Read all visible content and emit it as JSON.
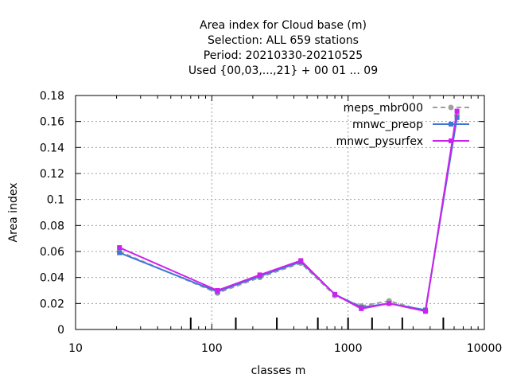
{
  "chart_data": {
    "type": "line",
    "title_lines": [
      "Area index  for Cloud base (m)",
      "Selection: ALL    659 stations",
      "Period: 20210330-20210525",
      "Used {00,03,...,21} + 00 01 ... 09"
    ],
    "xlabel": "classes m",
    "ylabel": "Area index",
    "xscale": "log",
    "xlim": [
      10,
      10000
    ],
    "ylim": [
      0,
      0.18
    ],
    "x_ticks": [
      10,
      100,
      1000,
      10000
    ],
    "x_tick_labels": [
      "10",
      "100",
      "1000",
      "10000"
    ],
    "y_ticks": [
      0,
      0.02,
      0.04,
      0.06,
      0.08,
      0.1,
      0.12,
      0.14,
      0.16,
      0.18
    ],
    "y_tick_labels": [
      "0",
      "0.02",
      "0.04",
      "0.06",
      "0.08",
      "0.1",
      "0.12",
      "0.14",
      "0.16",
      "0.18"
    ],
    "grid": true,
    "legend_position": "top-right",
    "class_boundaries": [
      70,
      150,
      300,
      600,
      1000,
      1500,
      2500,
      5000
    ],
    "x": [
      21,
      110,
      225,
      450,
      800,
      1250,
      2000,
      3700,
      6300
    ],
    "series": [
      {
        "name": "meps_mbr000",
        "color": "#a0a0a0",
        "dash": "dashed",
        "values": [
          0.06,
          0.028,
          0.04,
          0.051,
          0.026,
          0.018,
          0.022,
          0.014,
          0.165
        ]
      },
      {
        "name": "mnwc_preop",
        "color": "#3f76d8",
        "dash": "solid",
        "values": [
          0.059,
          0.029,
          0.041,
          0.052,
          0.027,
          0.017,
          0.02,
          0.015,
          0.163
        ]
      },
      {
        "name": "mnwc_pysurfex",
        "color": "#cc22ee",
        "dash": "solid",
        "values": [
          0.063,
          0.03,
          0.042,
          0.053,
          0.027,
          0.016,
          0.02,
          0.014,
          0.168
        ]
      }
    ]
  }
}
